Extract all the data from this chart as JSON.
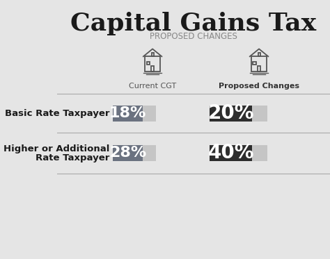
{
  "title": "Capital Gains Tax",
  "subtitle": "PROPOSED CHANGES",
  "background_color": "#e5e5e5",
  "col1_label": "Current CGT",
  "col2_label": "Proposed Changes",
  "rows": [
    {
      "label_line1": "Basic Rate Taxpayer",
      "label_line2": "",
      "current_pct": "18%",
      "proposed_pct": "20%",
      "current_color": "#6b7280",
      "proposed_color": "#2d2d2d"
    },
    {
      "label_line1": "Higher or Additional",
      "label_line2": "Rate Taxpayer",
      "current_pct": "28%",
      "proposed_pct": "40%",
      "current_color": "#6b7280",
      "proposed_color": "#2d2d2d"
    }
  ],
  "bar_bg_color": "#c5c5c5",
  "divider_color": "#aaaaaa",
  "label_fontsize": 9.5,
  "pct_fontsize": 16,
  "pct_fontsize2": 20,
  "title_fontsize": 26,
  "subtitle_fontsize": 8.5,
  "col_label_fontsize": 8
}
